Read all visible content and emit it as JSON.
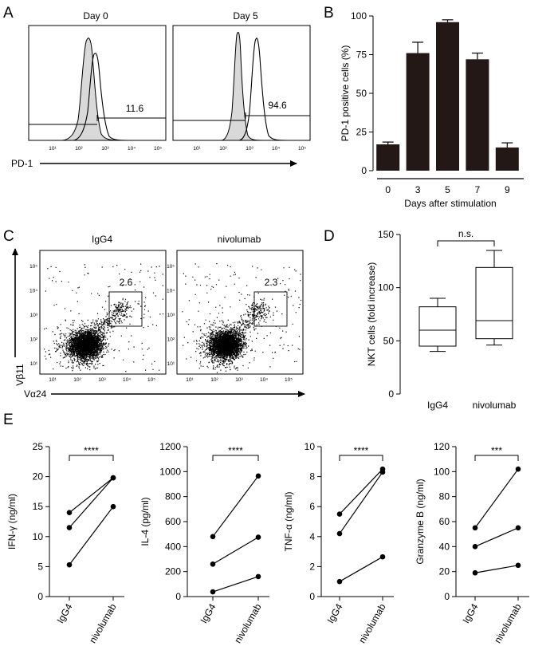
{
  "panels": {
    "A": {
      "letter": "A",
      "plots": [
        {
          "title": "Day 0",
          "gate_value": "11.6"
        },
        {
          "title": "Day 5",
          "gate_value": "94.6"
        }
      ],
      "x_axis_label": "PD-1",
      "log_tick_labels": [
        "10¹",
        "10²",
        "10³",
        "10⁴",
        "10⁵"
      ]
    },
    "B": {
      "letter": "B",
      "bar_color": "#231815"
    },
    "C": {
      "letter": "C",
      "plots": [
        {
          "title": "IgG4",
          "gate_value": "2.6"
        },
        {
          "title": "nivolumab",
          "gate_value": "2.3"
        }
      ],
      "x_axis_label": "Vα24",
      "y_axis_label": "Vβ11",
      "log_tick_labels": [
        "10¹",
        "10²",
        "10³",
        "10⁴",
        "10⁵"
      ]
    },
    "D": {
      "letter": "D",
      "significance": "n.s."
    },
    "E": {
      "letter": "E"
    }
  },
  "chart_data": [
    {
      "id": "B",
      "type": "bar",
      "categories": [
        "0",
        "3",
        "5",
        "7",
        "9"
      ],
      "values": [
        17,
        76,
        96,
        72,
        15
      ],
      "errors": [
        1.5,
        7,
        1.5,
        4,
        3
      ],
      "xlabel": "Days after stimulation",
      "ylabel": "PD-1 positive cells (%)",
      "ylim": [
        0,
        100
      ],
      "yticks": [
        0,
        25,
        50,
        75,
        100
      ]
    },
    {
      "id": "D",
      "type": "box",
      "categories": [
        "IgG4",
        "nivolumab"
      ],
      "boxes": [
        {
          "min": 40,
          "q1": 45,
          "median": 60,
          "q3": 82,
          "max": 90
        },
        {
          "min": 46,
          "q1": 52,
          "median": 69,
          "q3": 119,
          "max": 135
        }
      ],
      "ylabel": "NKT cells (fold increase)",
      "ylim": [
        0,
        150
      ],
      "yticks": [
        0,
        50,
        100,
        150
      ]
    },
    {
      "id": "E1",
      "type": "line",
      "categories": [
        "IgG4",
        "nivolumab"
      ],
      "pairs": [
        [
          14,
          19.8
        ],
        [
          11.5,
          19.8
        ],
        [
          5.3,
          15
        ]
      ],
      "ylabel": "IFN-γ (ng/ml)",
      "ylim": [
        0,
        25
      ],
      "yticks": [
        0,
        5,
        10,
        15,
        20,
        25
      ],
      "significance": "****"
    },
    {
      "id": "E2",
      "type": "line",
      "categories": [
        "IgG4",
        "nivolumab"
      ],
      "pairs": [
        [
          480,
          965
        ],
        [
          260,
          475
        ],
        [
          38,
          160
        ]
      ],
      "ylabel": "IL-4 (pg/ml)",
      "ylim": [
        0,
        1200
      ],
      "yticks": [
        0,
        200,
        400,
        600,
        800,
        1000,
        1200
      ],
      "significance": "****"
    },
    {
      "id": "E3",
      "type": "line",
      "categories": [
        "IgG4",
        "nivolumab"
      ],
      "pairs": [
        [
          5.5,
          8.5
        ],
        [
          4.2,
          8.3
        ],
        [
          1.0,
          2.65
        ]
      ],
      "ylabel": "TNF-α (ng/ml)",
      "ylim": [
        0,
        10
      ],
      "yticks": [
        0,
        2,
        4,
        6,
        8,
        10
      ],
      "significance": "****"
    },
    {
      "id": "E4",
      "type": "line",
      "categories": [
        "IgG4",
        "nivolumab"
      ],
      "pairs": [
        [
          55,
          102
        ],
        [
          40,
          55
        ],
        [
          19,
          25
        ]
      ],
      "ylabel": "Granzyme B (ng/ml)",
      "ylim": [
        0,
        120
      ],
      "yticks": [
        0,
        20,
        40,
        60,
        80,
        100,
        120
      ],
      "significance": "***"
    }
  ]
}
